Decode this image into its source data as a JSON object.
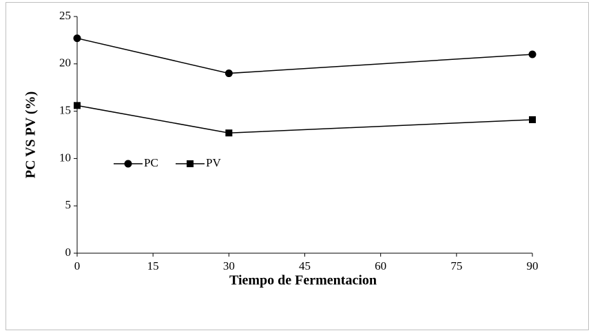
{
  "chart_data": {
    "type": "line",
    "xlabel": "Tiempo de Fermentacion",
    "ylabel": "PC VS PV (%)",
    "x": [
      0,
      30,
      90
    ],
    "series": [
      {
        "name": "PC",
        "color": "#000000",
        "marker": "circle",
        "values": [
          22.7,
          19.0,
          21.0
        ]
      },
      {
        "name": "PV",
        "color": "#000000",
        "marker": "square",
        "values": [
          15.6,
          12.7,
          14.1
        ]
      }
    ],
    "xlim": [
      0,
      90
    ],
    "xticks": [
      0,
      15,
      30,
      45,
      60,
      75,
      90
    ],
    "ylim": [
      0,
      25
    ],
    "yticks": [
      0,
      5,
      10,
      15,
      20,
      25
    ],
    "grid": false,
    "legend": "left"
  }
}
